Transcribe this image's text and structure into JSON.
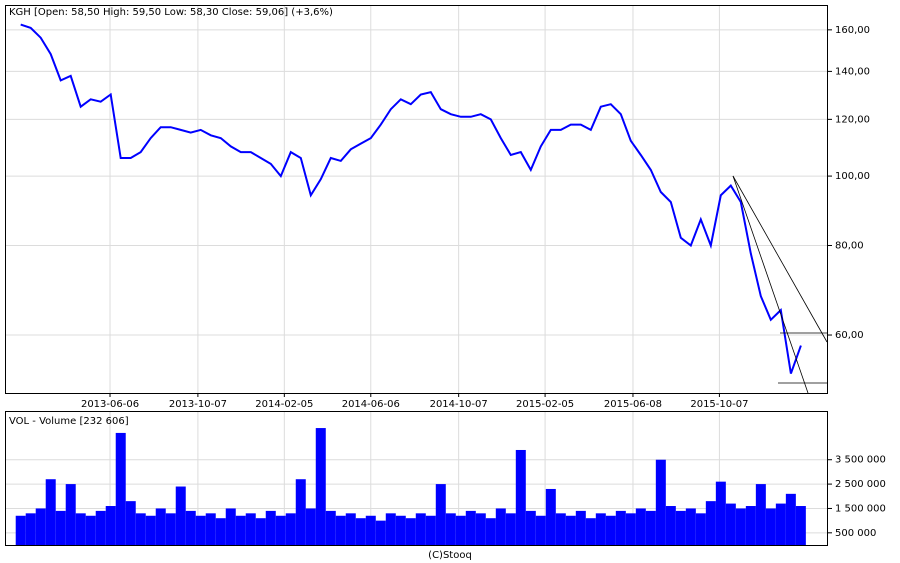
{
  "chart_data": [
    {
      "type": "line",
      "title": "KGH [Open: 58,50  High: 59,50  Low: 58,30  Close: 59,06] (+3,6%)",
      "color": "#0000ff",
      "log_scale": true,
      "grid": true,
      "x": [
        "2013-02-01",
        "2013-02-15",
        "2013-03-01",
        "2013-03-15",
        "2013-03-29",
        "2013-04-12",
        "2013-04-26",
        "2013-05-10",
        "2013-05-24",
        "2013-06-07",
        "2013-06-21",
        "2013-07-05",
        "2013-07-19",
        "2013-08-02",
        "2013-08-16",
        "2013-08-30",
        "2013-09-13",
        "2013-09-27",
        "2013-10-11",
        "2013-10-25",
        "2013-11-08",
        "2013-11-22",
        "2013-12-06",
        "2013-12-20",
        "2014-01-03",
        "2014-01-17",
        "2014-01-31",
        "2014-02-14",
        "2014-02-28",
        "2014-03-14",
        "2014-03-28",
        "2014-04-11",
        "2014-04-25",
        "2014-05-09",
        "2014-05-23",
        "2014-06-06",
        "2014-06-20",
        "2014-07-04",
        "2014-07-18",
        "2014-08-01",
        "2014-08-15",
        "2014-08-29",
        "2014-09-12",
        "2014-09-26",
        "2014-10-10",
        "2014-10-24",
        "2014-11-07",
        "2014-11-21",
        "2014-12-05",
        "2014-12-19",
        "2015-01-02",
        "2015-01-16",
        "2015-01-30",
        "2015-02-13",
        "2015-02-27",
        "2015-03-13",
        "2015-03-27",
        "2015-04-10",
        "2015-04-24",
        "2015-05-08",
        "2015-05-22",
        "2015-06-05",
        "2015-06-19",
        "2015-07-03",
        "2015-07-17",
        "2015-07-31",
        "2015-08-14",
        "2015-08-28",
        "2015-09-11",
        "2015-09-25",
        "2015-10-09",
        "2015-10-23",
        "2015-11-06",
        "2015-11-20",
        "2015-12-04",
        "2015-12-18",
        "2016-01-01",
        "2016-01-15",
        "2016-01-29"
      ],
      "values": [
        162.7,
        161,
        156,
        148,
        136,
        138,
        125,
        128,
        127,
        130,
        106,
        106,
        108,
        113,
        117,
        117,
        116,
        115,
        116,
        114,
        113,
        110,
        108,
        108,
        106,
        104,
        100,
        108,
        106,
        94,
        99,
        106,
        105,
        109,
        111,
        113,
        118,
        124,
        128,
        126,
        130,
        131,
        124,
        122,
        121,
        121,
        122,
        120,
        113,
        107,
        108,
        102,
        110,
        116,
        116,
        118,
        118,
        116,
        125,
        126,
        122,
        112,
        107,
        102,
        95,
        92,
        82,
        80,
        87,
        80,
        94,
        97,
        92,
        78,
        68,
        63,
        65,
        53,
        58
      ],
      "xlim": [
        "2013-01-10",
        "2016-03-07"
      ],
      "xticks": [
        "2013-06-06",
        "2013-10-07",
        "2014-02-05",
        "2014-06-06",
        "2014-10-07",
        "2015-02-05",
        "2015-06-08",
        "2015-10-07"
      ],
      "ylim": [
        49.8,
        173.3
      ],
      "yticks": [
        {
          "value": 60,
          "label": "60,00"
        },
        {
          "value": 80,
          "label": "80,00"
        },
        {
          "value": 100,
          "label": "100,00"
        },
        {
          "value": 120,
          "label": "120,00"
        },
        {
          "value": 140,
          "label": "140,00"
        },
        {
          "value": 160,
          "label": "160,00"
        }
      ]
    },
    {
      "type": "bar",
      "title": "VOL - Volume [232 606]",
      "color": "#0000ff",
      "grid": true,
      "footer": "(C)Stooq",
      "x": [
        "2013-02-01",
        "2013-02-15",
        "2013-03-01",
        "2013-03-15",
        "2013-03-29",
        "2013-04-12",
        "2013-04-26",
        "2013-05-10",
        "2013-05-24",
        "2013-06-07",
        "2013-06-21",
        "2013-07-05",
        "2013-07-19",
        "2013-08-02",
        "2013-08-16",
        "2013-08-30",
        "2013-09-13",
        "2013-09-27",
        "2013-10-11",
        "2013-10-25",
        "2013-11-08",
        "2013-11-22",
        "2013-12-06",
        "2013-12-20",
        "2014-01-03",
        "2014-01-17",
        "2014-01-31",
        "2014-02-14",
        "2014-02-28",
        "2014-03-14",
        "2014-03-28",
        "2014-04-11",
        "2014-04-25",
        "2014-05-09",
        "2014-05-23",
        "2014-06-06",
        "2014-06-20",
        "2014-07-04",
        "2014-07-18",
        "2014-08-01",
        "2014-08-15",
        "2014-08-29",
        "2014-09-12",
        "2014-09-26",
        "2014-10-10",
        "2014-10-24",
        "2014-11-07",
        "2014-11-21",
        "2014-12-05",
        "2014-12-19",
        "2015-01-02",
        "2015-01-16",
        "2015-01-30",
        "2015-02-13",
        "2015-02-27",
        "2015-03-13",
        "2015-03-27",
        "2015-04-10",
        "2015-04-24",
        "2015-05-08",
        "2015-05-22",
        "2015-06-05",
        "2015-06-19",
        "2015-07-03",
        "2015-07-17",
        "2015-07-31",
        "2015-08-14",
        "2015-08-28",
        "2015-09-11",
        "2015-09-25",
        "2015-10-09",
        "2015-10-23",
        "2015-11-06",
        "2015-11-20",
        "2015-12-04",
        "2015-12-18",
        "2016-01-01",
        "2016-01-15",
        "2016-01-29"
      ],
      "values": [
        1200000,
        1300000,
        1500000,
        2700000,
        1400000,
        2500000,
        1300000,
        1200000,
        1400000,
        1600000,
        4600000,
        1800000,
        1300000,
        1200000,
        1500000,
        1300000,
        2400000,
        1400000,
        1200000,
        1300000,
        1100000,
        1500000,
        1200000,
        1300000,
        1100000,
        1400000,
        1200000,
        1300000,
        2700000,
        1500000,
        4800000,
        1400000,
        1200000,
        1300000,
        1100000,
        1200000,
        1000000,
        1300000,
        1200000,
        1100000,
        1300000,
        1200000,
        2500000,
        1300000,
        1200000,
        1400000,
        1300000,
        1100000,
        1500000,
        1300000,
        3900000,
        1400000,
        1200000,
        2300000,
        1300000,
        1200000,
        1400000,
        1100000,
        1300000,
        1200000,
        1400000,
        1300000,
        1500000,
        1400000,
        3500000,
        1600000,
        1400000,
        1500000,
        1300000,
        1800000,
        2600000,
        1700000,
        1500000,
        1600000,
        2500000,
        1500000,
        1700000,
        2100000,
        1600000
      ],
      "xlim": [
        "2013-01-10",
        "2016-03-07"
      ],
      "xticks": [
        "2013-06-06",
        "2013-10-07",
        "2014-02-05",
        "2014-06-06",
        "2014-10-07",
        "2015-02-05",
        "2015-06-08",
        "2015-10-07"
      ],
      "ylim": [
        0,
        5500000
      ],
      "yticks": [
        {
          "value": 500000,
          "label": "500 000"
        },
        {
          "value": 1500000,
          "label": "1 500 000"
        },
        {
          "value": 2500000,
          "label": "2 500 000"
        },
        {
          "value": 3500000,
          "label": "3 500 000"
        }
      ]
    }
  ]
}
